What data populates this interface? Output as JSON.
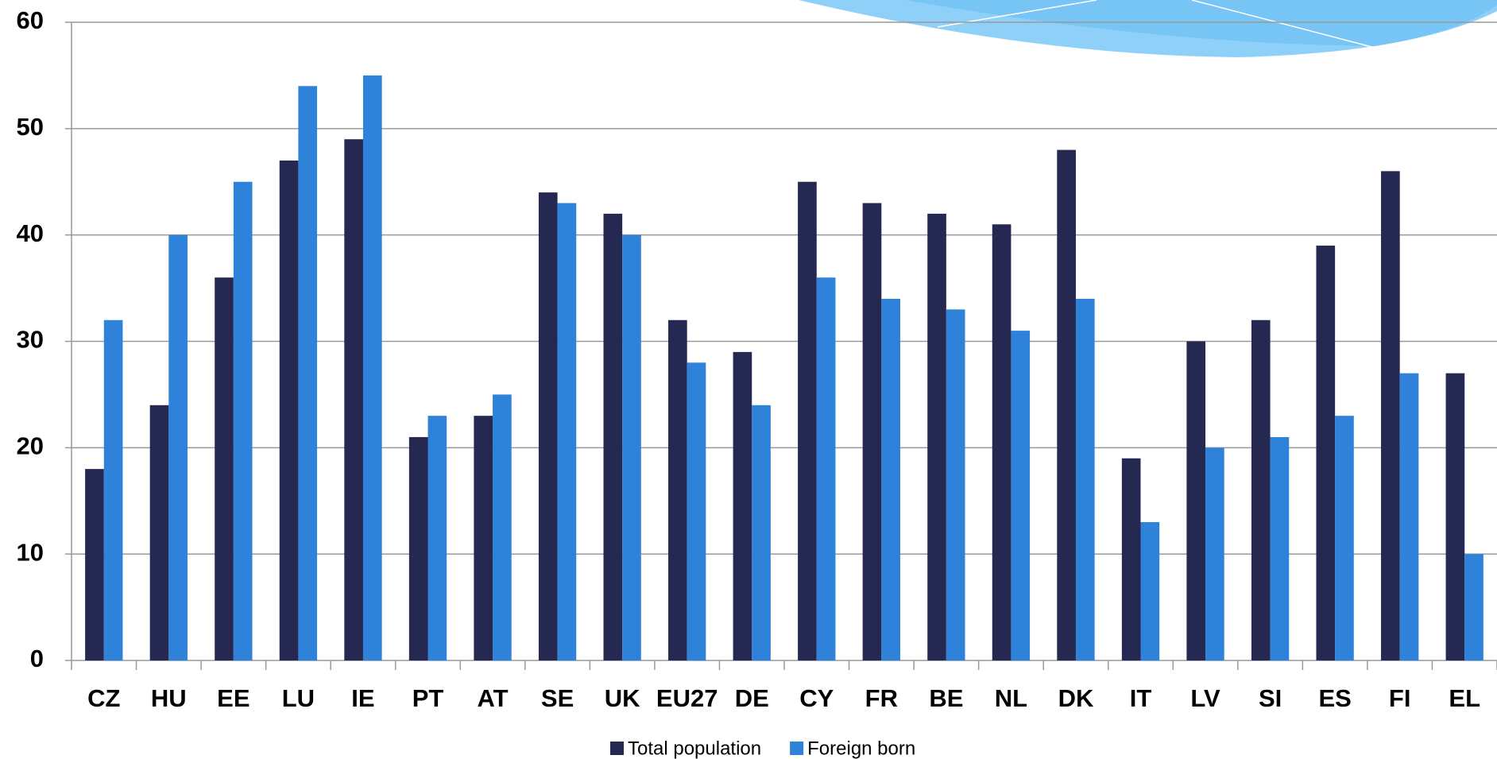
{
  "chart_data": {
    "type": "bar",
    "categories": [
      "CZ",
      "HU",
      "EE",
      "LU",
      "IE",
      "PT",
      "AT",
      "SE",
      "UK",
      "EU27",
      "DE",
      "CY",
      "FR",
      "BE",
      "NL",
      "DK",
      "IT",
      "LV",
      "SI",
      "ES",
      "FI",
      "EL"
    ],
    "series": [
      {
        "name": "Total population",
        "color": "#252850",
        "values": [
          18,
          24,
          36,
          47,
          49,
          21,
          23,
          44,
          42,
          32,
          29,
          45,
          43,
          42,
          41,
          48,
          19,
          30,
          32,
          39,
          46,
          27
        ]
      },
      {
        "name": "Foreign born",
        "color": "#2e82d9",
        "values": [
          32,
          40,
          45,
          54,
          55,
          23,
          25,
          43,
          40,
          28,
          24,
          36,
          34,
          33,
          31,
          34,
          13,
          20,
          21,
          23,
          27,
          10
        ]
      }
    ],
    "ylim": [
      0,
      60
    ],
    "yticks": [
      0,
      10,
      20,
      30,
      40,
      50,
      60
    ],
    "grid": true,
    "legend": "bottom"
  }
}
